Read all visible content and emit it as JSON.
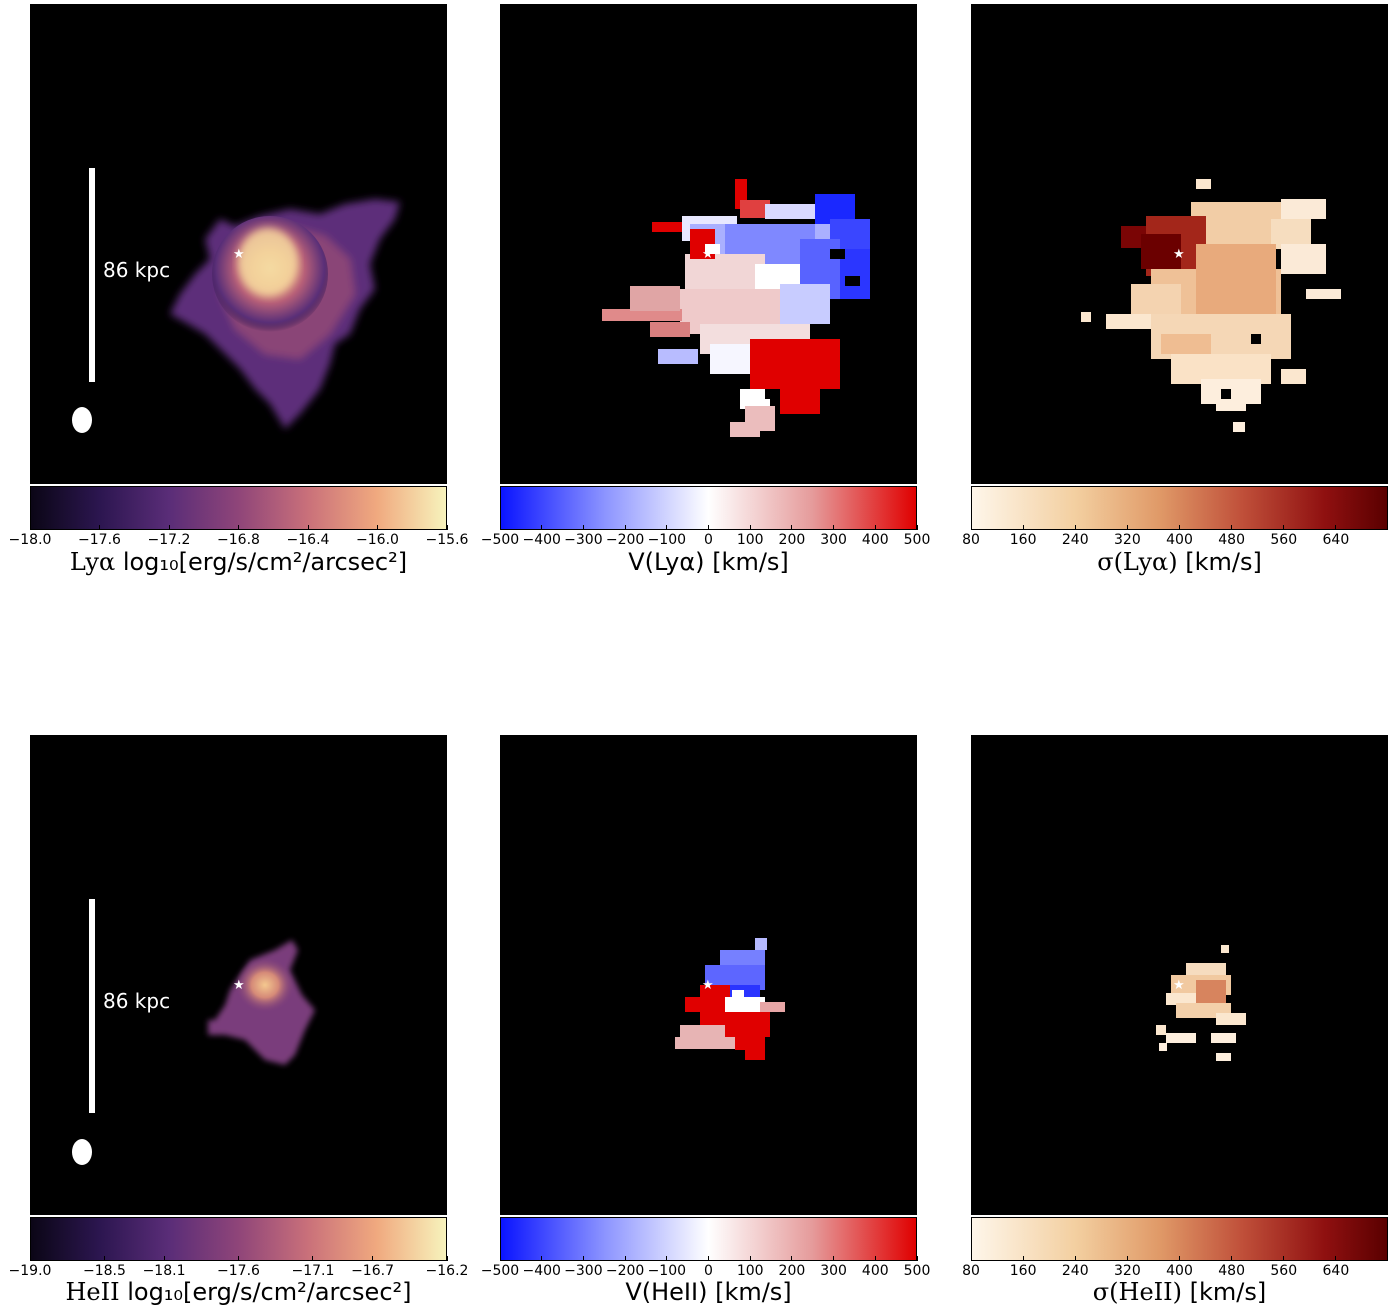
{
  "chart_data": [
    {
      "type": "heatmap",
      "quantity": "Lyα surface brightness",
      "label_prefix": "Lyα",
      "label_unit": "log₁₀[erg/s/cm²/arcsec²]",
      "colormap": "magma-like",
      "colors": [
        "#0b0616",
        "#3a1a5e",
        "#6b3a7c",
        "#c16b73",
        "#f1b786",
        "#f7f3bc"
      ],
      "range": [
        -18.0,
        -15.6
      ],
      "ticks": [
        "−18.0",
        "−17.6",
        "−17.2",
        "−16.8",
        "−16.4",
        "−16.0",
        "−15.6"
      ],
      "scale_bar": "86 kpc"
    },
    {
      "type": "heatmap",
      "quantity": "Lyα velocity",
      "label_prefix": "V(Lyα)",
      "label_unit": "[km/s]",
      "colormap": "bwr",
      "colors": [
        "#0a14ff",
        "#ffffff",
        "#e00000"
      ],
      "range": [
        -500,
        500
      ],
      "ticks": [
        "−500",
        "−400",
        "−300",
        "−200",
        "−100",
        "0",
        "100",
        "200",
        "300",
        "400",
        "500"
      ]
    },
    {
      "type": "heatmap",
      "quantity": "Lyα velocity dispersion",
      "label_prefix": "σ(Lyα)",
      "label_unit": "[km/s]",
      "colormap": "OrRd-like",
      "colors": [
        "#fef6ea",
        "#f0c792",
        "#d9825a",
        "#8f1010",
        "#5a0000"
      ],
      "range": [
        80,
        720
      ],
      "ticks": [
        "80",
        "160",
        "240",
        "320",
        "400",
        "480",
        "560",
        "640"
      ]
    },
    {
      "type": "heatmap",
      "quantity": "HeII surface brightness",
      "label_prefix": "HeII",
      "label_unit": "log₁₀[erg/s/cm²/arcsec²]",
      "colormap": "magma-like",
      "colors": [
        "#0b0616",
        "#3a1a5e",
        "#6b3a7c",
        "#c16b73",
        "#f1b786",
        "#f7f3bc"
      ],
      "range": [
        -19.0,
        -16.2
      ],
      "ticks": [
        "−19.0",
        "−18.5",
        "−18.1",
        "−17.6",
        "−17.1",
        "−16.7",
        "−16.2"
      ],
      "scale_bar": "86 kpc"
    },
    {
      "type": "heatmap",
      "quantity": "HeII velocity",
      "label_prefix": "V(HeII)",
      "label_unit": "[km/s]",
      "colormap": "bwr",
      "colors": [
        "#0a14ff",
        "#ffffff",
        "#e00000"
      ],
      "range": [
        -500,
        500
      ],
      "ticks": [
        "−500",
        "−400",
        "−300",
        "−200",
        "−100",
        "0",
        "100",
        "200",
        "300",
        "400",
        "500"
      ]
    },
    {
      "type": "heatmap",
      "quantity": "HeII velocity dispersion",
      "label_prefix": "σ(HeII)",
      "label_unit": "[km/s]",
      "colormap": "OrRd-like",
      "colors": [
        "#fef6ea",
        "#f0c792",
        "#d9825a",
        "#8f1010",
        "#5a0000"
      ],
      "range": [
        80,
        720
      ],
      "ticks": [
        "80",
        "160",
        "240",
        "320",
        "400",
        "480",
        "560",
        "640"
      ]
    }
  ]
}
